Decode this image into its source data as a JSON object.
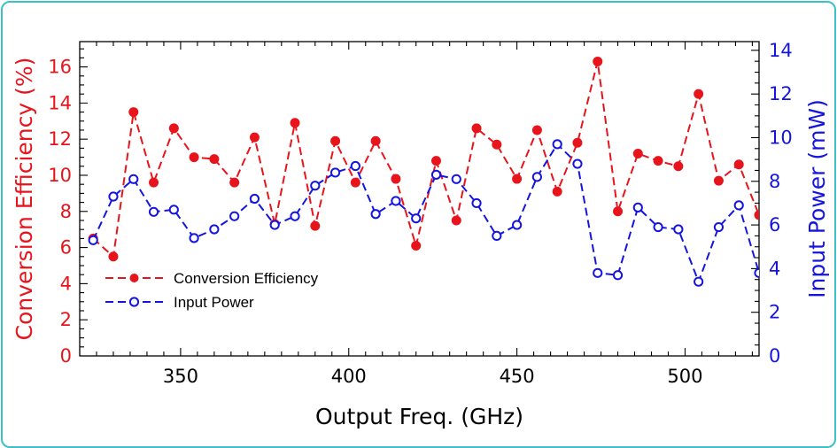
{
  "chart_data": {
    "type": "line",
    "xlabel": "Output Freq. (GHz)",
    "ylabel_left": "Conversion Efficiency (%)",
    "ylabel_right": "Input Power (mW)",
    "xlim": [
      320,
      522
    ],
    "ylim_left": [
      0,
      17.4
    ],
    "ylim_right": [
      0,
      14.4
    ],
    "xticks": [
      350,
      400,
      450,
      500
    ],
    "yticks_left": [
      0,
      2,
      4,
      6,
      8,
      10,
      12,
      14,
      16
    ],
    "yticks_right": [
      0,
      2,
      4,
      6,
      8,
      10,
      12,
      14
    ],
    "grid": false,
    "legend_position": "lower-left",
    "colors": {
      "left_axis": "#e8141c",
      "right_axis": "#1515e0"
    },
    "series": [
      {
        "name": "Conversion Efficiency",
        "axis": "left",
        "color": "#e8141c",
        "marker": "filled-circle",
        "x": [
          324,
          330,
          336,
          342,
          348,
          354,
          360,
          366,
          372,
          378,
          384,
          390,
          396,
          402,
          408,
          414,
          420,
          426,
          432,
          438,
          444,
          450,
          456,
          462,
          468,
          474,
          480,
          486,
          492,
          498,
          504,
          510,
          516,
          522
        ],
        "y": [
          6.5,
          5.5,
          13.5,
          9.6,
          12.6,
          11.0,
          10.9,
          9.6,
          12.1,
          7.3,
          12.9,
          7.2,
          11.9,
          9.6,
          11.9,
          9.8,
          6.1,
          10.8,
          7.5,
          12.6,
          11.7,
          9.8,
          12.5,
          9.1,
          11.8,
          16.3,
          8.0,
          11.2,
          10.8,
          10.5,
          14.5,
          9.7,
          10.6,
          7.8
        ]
      },
      {
        "name": "Input Power",
        "axis": "right",
        "color": "#1515e0",
        "marker": "open-circle",
        "x": [
          324,
          330,
          336,
          342,
          348,
          354,
          360,
          366,
          372,
          378,
          384,
          390,
          396,
          402,
          408,
          414,
          420,
          426,
          432,
          438,
          444,
          450,
          456,
          462,
          468,
          474,
          480,
          486,
          492,
          498,
          504,
          510,
          516,
          522
        ],
        "y": [
          5.3,
          7.3,
          8.1,
          6.6,
          6.7,
          5.4,
          5.8,
          6.4,
          7.2,
          6.0,
          6.4,
          7.8,
          8.4,
          8.7,
          6.5,
          7.1,
          6.3,
          8.3,
          8.1,
          7.0,
          5.5,
          6.0,
          8.2,
          9.7,
          8.8,
          3.8,
          3.7,
          6.8,
          5.9,
          5.8,
          3.4,
          5.9,
          6.9,
          3.8
        ]
      }
    ]
  }
}
